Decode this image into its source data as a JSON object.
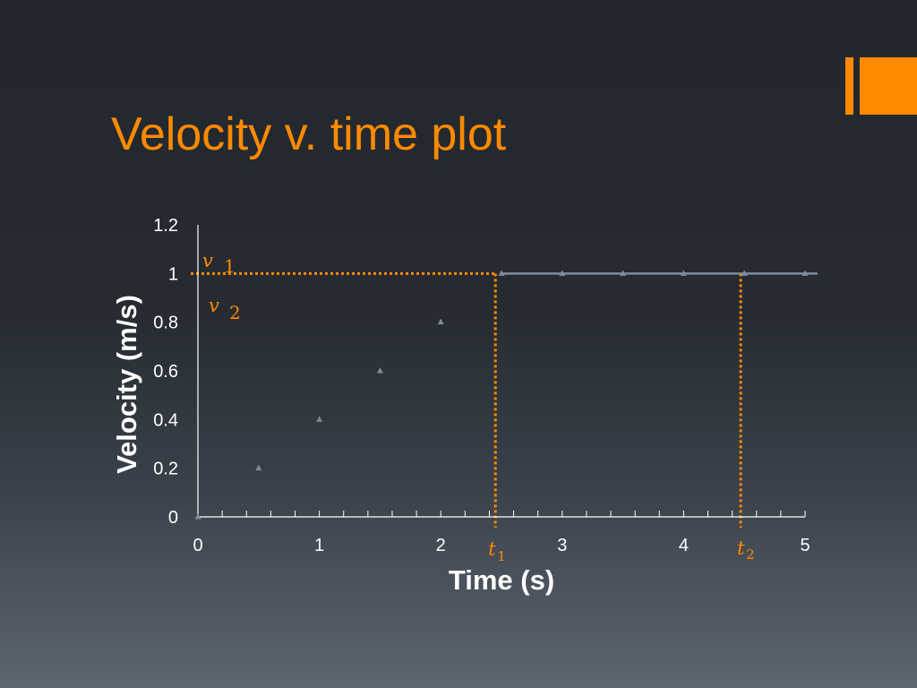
{
  "slide": {
    "title": "Velocity v. time plot",
    "accent_color": "#ff8a00"
  },
  "chart_data": {
    "type": "scatter",
    "xlabel": "Time (s)",
    "ylabel": "Velocity (m/s)",
    "xlim": [
      0,
      5
    ],
    "ylim": [
      0,
      1.2
    ],
    "x_ticks": [
      "0",
      "1",
      "2",
      "3",
      "4",
      "5"
    ],
    "y_ticks": [
      "0",
      "0.2",
      "0.4",
      "0.6",
      "0.8",
      "1",
      "1.2"
    ],
    "grid": false,
    "series": [
      {
        "x": [
          0,
          0.5,
          1,
          1.5,
          2,
          2.5,
          3,
          3.5,
          4,
          4.5,
          5
        ],
        "y": [
          0,
          0.2,
          0.4,
          0.6,
          0.8,
          1,
          1,
          1,
          1,
          1,
          1
        ],
        "color": "#7f8c99",
        "marker": "triangle",
        "line_from_x": 2.5
      }
    ],
    "annotations": {
      "v1": {
        "symbol": "v",
        "subscript": "1",
        "at_y": 1
      },
      "v2": {
        "symbol": "v",
        "subscript": "2"
      },
      "t1": {
        "symbol": "t",
        "subscript": "1",
        "at_x": 2.45
      },
      "t2": {
        "symbol": "t",
        "subscript": "2",
        "at_x": 4.47
      },
      "color": "#ff8a00"
    }
  }
}
